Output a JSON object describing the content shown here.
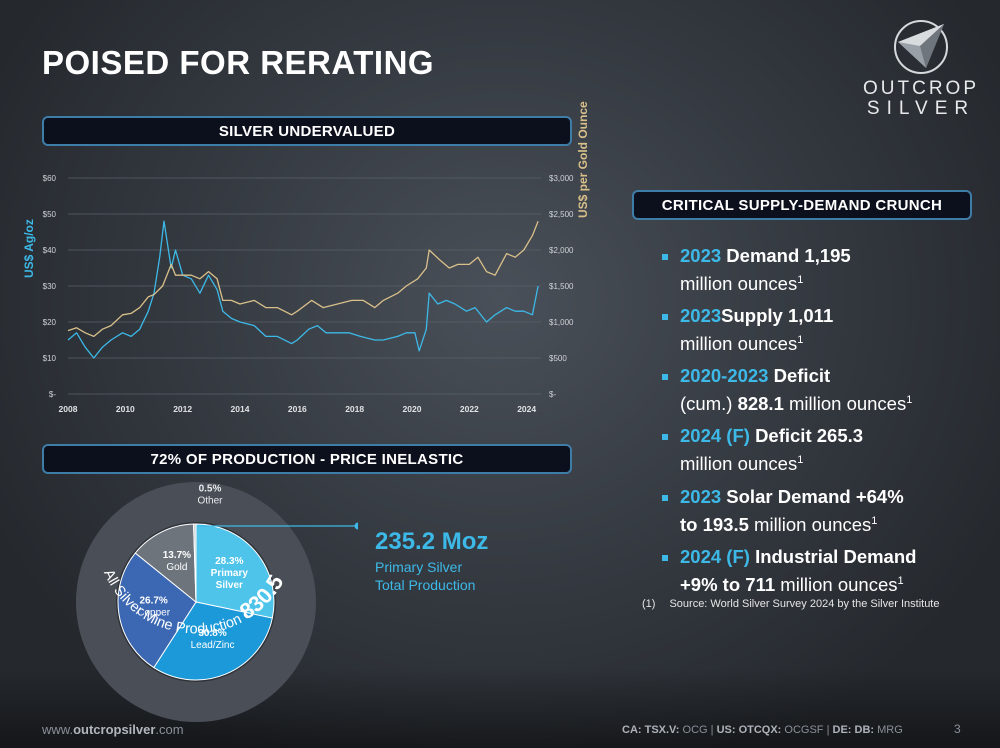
{
  "page": {
    "title": "POISED FOR RERATING",
    "logo_line1": "OUTCROP",
    "logo_line2": "SILVER"
  },
  "banners": {
    "silver_undervalued": "SILVER UNDERVALUED",
    "production": "72% OF PRODUCTION - PRICE INELASTIC",
    "crunch": "CRITICAL SUPPLY-DEMAND CRUNCH"
  },
  "chart_data": {
    "type": "line",
    "title": "SILVER UNDERVALUED",
    "ylabel_left": "US$ Ag/oz",
    "ylabel_right": "US$ per Gold Ounce",
    "left_ticks": [
      "$-",
      "$10",
      "$20",
      "$30",
      "$40",
      "$50",
      "$60"
    ],
    "right_ticks": [
      "$-",
      "$500",
      "$1,000",
      "$1,500",
      "$2,000",
      "$2,500",
      "$3,000"
    ],
    "x_ticks": [
      "2008",
      "2010",
      "2012",
      "2014",
      "2016",
      "2018",
      "2020",
      "2022",
      "2024"
    ],
    "ylim_left": [
      0,
      60
    ],
    "ylim_right": [
      0,
      3000
    ],
    "xlim": [
      2008,
      2024.5
    ],
    "grid": true,
    "colors": {
      "silver": "#3db9e8",
      "gold": "#d9c08a"
    },
    "series": [
      {
        "axis": "left",
        "x": [
          2008,
          2008.3,
          2008.6,
          2008.9,
          2009.2,
          2009.5,
          2009.9,
          2010.2,
          2010.5,
          2010.8,
          2011.0,
          2011.2,
          2011.35,
          2011.6,
          2011.75,
          2012.0,
          2012.3,
          2012.6,
          2012.9,
          2013.2,
          2013.4,
          2013.7,
          2014.0,
          2014.5,
          2014.9,
          2015.3,
          2015.8,
          2016.0,
          2016.4,
          2016.7,
          2017.0,
          2017.4,
          2017.8,
          2018.2,
          2018.7,
          2019.0,
          2019.5,
          2019.8,
          2020.1,
          2020.25,
          2020.5,
          2020.6,
          2020.9,
          2021.2,
          2021.5,
          2021.9,
          2022.2,
          2022.6,
          2022.9,
          2023.3,
          2023.6,
          2023.9,
          2024.2,
          2024.4
        ],
        "values": [
          15,
          17,
          13,
          10,
          13,
          15,
          17,
          16,
          18,
          23,
          28,
          38,
          48,
          35,
          40,
          33,
          32,
          28,
          33,
          29,
          23,
          21,
          20,
          19,
          16,
          16,
          14,
          15,
          18,
          19,
          17,
          17,
          17,
          16,
          15,
          15,
          16,
          17,
          17,
          12,
          18,
          28,
          25,
          26,
          25,
          23,
          24,
          20,
          22,
          24,
          23,
          23,
          22,
          30
        ]
      },
      {
        "axis": "right",
        "x": [
          2008,
          2008.3,
          2008.6,
          2008.9,
          2009.2,
          2009.5,
          2009.9,
          2010.2,
          2010.5,
          2010.8,
          2011.0,
          2011.3,
          2011.6,
          2011.75,
          2012.0,
          2012.3,
          2012.6,
          2012.9,
          2013.2,
          2013.4,
          2013.7,
          2014.0,
          2014.5,
          2014.9,
          2015.3,
          2015.8,
          2016.0,
          2016.5,
          2016.9,
          2017.4,
          2017.9,
          2018.3,
          2018.7,
          2019.0,
          2019.5,
          2019.8,
          2020.2,
          2020.5,
          2020.6,
          2021.0,
          2021.3,
          2021.6,
          2022.0,
          2022.3,
          2022.6,
          2022.9,
          2023.3,
          2023.6,
          2023.9,
          2024.2,
          2024.4
        ],
        "values": [
          880,
          920,
          850,
          800,
          900,
          950,
          1100,
          1120,
          1200,
          1350,
          1380,
          1500,
          1800,
          1650,
          1650,
          1650,
          1600,
          1700,
          1600,
          1300,
          1300,
          1250,
          1300,
          1200,
          1200,
          1100,
          1150,
          1300,
          1200,
          1250,
          1300,
          1300,
          1200,
          1300,
          1400,
          1500,
          1600,
          1750,
          2000,
          1850,
          1750,
          1800,
          1800,
          1900,
          1700,
          1650,
          1950,
          1900,
          2000,
          2200,
          2400
        ]
      }
    ]
  },
  "pie": {
    "slices": [
      {
        "label": "Primary Silver",
        "pct_text": "28.3%",
        "value": 28.3,
        "color": "#4fc4ea"
      },
      {
        "label": "Lead/Zinc",
        "pct_text": "30.8%",
        "value": 30.8,
        "color": "#1c99d8"
      },
      {
        "label": "Copper",
        "pct_text": "26.7%",
        "value": 26.7,
        "color": "#3c68b3"
      },
      {
        "label": "Gold",
        "pct_text": "13.7%",
        "value": 13.7,
        "color": "#6d747c"
      },
      {
        "label": "Other",
        "pct_text": "0.5%",
        "value": 0.5,
        "color": "#c9ccd0"
      }
    ],
    "ring_label": "All Silver Mine Production",
    "ring_value": "830.5 Moz",
    "callout_value": "235.2 Moz",
    "callout_line1": "Primary Silver",
    "callout_line2": "Total Production"
  },
  "bullets": [
    {
      "hl": "2023",
      "bold": "Demand 1,195",
      "line2_pre": "million ounces",
      "line2_bold": "",
      "line2_post": "",
      "sup": "1"
    },
    {
      "hl": "2023",
      "bold": "Supply 1,011",
      "line2_pre": "million ounces",
      "line2_bold": "",
      "line2_post": "",
      "sup": "1"
    },
    {
      "hl": "2020-2023",
      "bold": "Deficit",
      "line2_pre": "(cum.) ",
      "line2_bold": "828.1",
      "line2_post": " million ounces",
      "sup": "1"
    },
    {
      "hl": "2024 (F)",
      "bold": "Deficit 265.3",
      "line2_pre": "million ounces",
      "line2_bold": "",
      "line2_post": "",
      "sup": "1"
    },
    {
      "hl": "2023",
      "bold": "Solar Demand +64%",
      "line2_pre": "",
      "line2_bold": "to 193.5",
      "line2_post": " million ounces",
      "sup": "1"
    },
    {
      "hl": "2024 (F)",
      "bold": "Industrial Demand",
      "line2_pre": "",
      "line2_bold": "+9% to 711",
      "line2_post": " million ounces",
      "sup": "1"
    }
  ],
  "footnote": {
    "num": "(1)",
    "text": "Source: World Silver Survey 2024 by the Silver Institute"
  },
  "footer": {
    "url_pre": "www.",
    "url_bold": "outcropsilver",
    "url_post": ".com",
    "ca_label": "CA: TSX.V:",
    "ca_val": " OCG",
    "us_label": "US: OTCQX:",
    "us_val": " OCGSF",
    "de_label": "DE: DB:",
    "de_val": " MRG",
    "sep": "  |  ",
    "page_number": "3"
  }
}
